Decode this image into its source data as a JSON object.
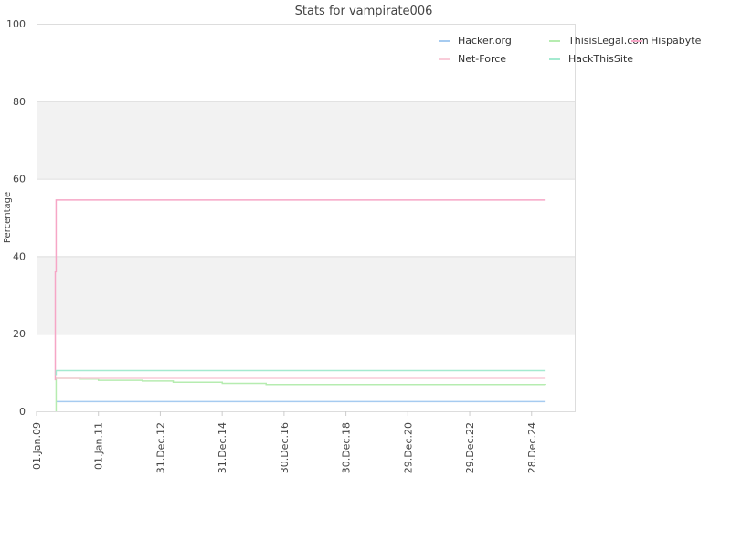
{
  "chart_data": {
    "type": "line",
    "title": "Stats for vampirate006",
    "xlabel": "",
    "ylabel": "Percentage",
    "ylim": [
      0,
      100
    ],
    "y_ticks": [
      0,
      20,
      40,
      60,
      80,
      100
    ],
    "x_range": [
      "2009-01-01",
      "2026-06-01"
    ],
    "x_ticks": [
      {
        "date": "2009-01-01",
        "label": "01.Jan.09"
      },
      {
        "date": "2011-01-01",
        "label": "01.Jan.11"
      },
      {
        "date": "2012-12-31",
        "label": "31.Dec.12"
      },
      {
        "date": "2014-12-31",
        "label": "31.Dec.14"
      },
      {
        "date": "2016-12-30",
        "label": "30.Dec.16"
      },
      {
        "date": "2018-12-30",
        "label": "30.Dec.18"
      },
      {
        "date": "2020-12-29",
        "label": "29.Dec.20"
      },
      {
        "date": "2022-12-29",
        "label": "29.Dec.22"
      },
      {
        "date": "2024-12-28",
        "label": "28.Dec.24"
      }
    ],
    "band_fill": "#f2f2f2",
    "legend_position": "top-right",
    "series": [
      {
        "name": "Hacker.org",
        "color": "#a6cbf0",
        "points": [
          [
            "2009-08-20",
            2.5
          ],
          [
            "2025-06-01",
            2.5
          ]
        ]
      },
      {
        "name": "ThisisLegal.com",
        "color": "#b6ecb0",
        "points": [
          [
            "2009-08-20",
            0
          ],
          [
            "2009-08-20",
            8.5
          ],
          [
            "2010-06-01",
            8.3
          ],
          [
            "2011-01-01",
            8.0
          ],
          [
            "2012-06-01",
            7.8
          ],
          [
            "2013-06-01",
            7.5
          ],
          [
            "2015-01-01",
            7.2
          ],
          [
            "2016-06-01",
            6.9
          ],
          [
            "2025-06-01",
            6.8
          ]
        ]
      },
      {
        "name": "Hispabyte",
        "color": "#f6a6c6",
        "points": [
          [
            "2009-08-10",
            8
          ],
          [
            "2009-08-10",
            36
          ],
          [
            "2009-08-20",
            54.5
          ],
          [
            "2025-06-01",
            54.5
          ]
        ]
      },
      {
        "name": "Net-Force",
        "color": "#f9ccd9",
        "points": [
          [
            "2009-08-20",
            8.5
          ],
          [
            "2025-06-01",
            8.5
          ]
        ]
      },
      {
        "name": "HackThisSite",
        "color": "#a4ead0",
        "points": [
          [
            "2009-08-10",
            9.5
          ],
          [
            "2009-08-20",
            10.5
          ],
          [
            "2025-06-01",
            10.5
          ]
        ]
      }
    ]
  }
}
